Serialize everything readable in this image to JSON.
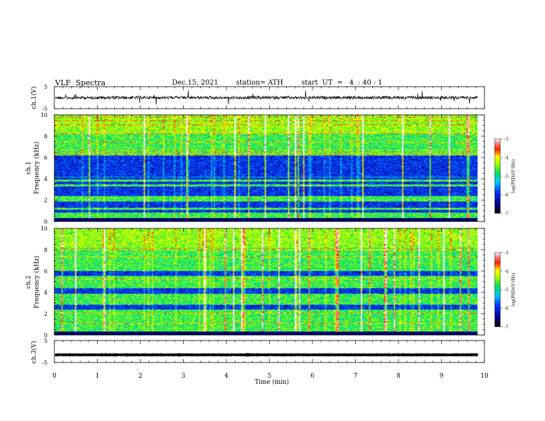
{
  "header": {
    "title": "VLF  Spectra",
    "date": "Dec.15, 2021",
    "station": "station= ATH",
    "start": "start  UT  =   4  : 40 : 1"
  },
  "chart_data": [
    {
      "id": "ch1-waveform",
      "type": "line",
      "ylabel": "ch.1(V)",
      "ylim": [
        -5,
        5
      ],
      "yticks": [
        5,
        -5
      ],
      "xlim": [
        0,
        10
      ],
      "baseline": 0,
      "color": "#000000"
    },
    {
      "id": "ch1-spectrogram",
      "type": "heatmap",
      "ylabel_line1": "ch.1",
      "ylabel_line2": "Frequency  (kHz)",
      "ylim": [
        0,
        10
      ],
      "yticks": [
        0,
        2,
        4,
        6,
        8,
        10
      ],
      "xlim": [
        0,
        9.8
      ],
      "colorbar": {
        "label": "log(PSD)(V²/Hz)",
        "range": [
          -7,
          -3
        ],
        "ticks": [
          "-3",
          "-4",
          "-5",
          "-6",
          "-7"
        ]
      },
      "dark_bands_khz": [
        [
          0.9,
          1.1
        ],
        [
          1.3,
          1.9
        ],
        [
          2.4,
          3.3
        ],
        [
          3.5,
          3.8
        ],
        [
          4.0,
          6.2
        ]
      ]
    },
    {
      "id": "ch2-spectrogram",
      "type": "heatmap",
      "ylabel_line1": "ch.2",
      "ylabel_line2": "Frequency  (kHz)",
      "ylim": [
        0,
        10
      ],
      "yticks": [
        0,
        2,
        4,
        6,
        8,
        10
      ],
      "xlim": [
        0,
        9.8
      ],
      "colorbar": {
        "label": "log(PSD)(V²/Hz)",
        "range": [
          -7,
          -3
        ],
        "ticks": [
          "-3",
          "-4",
          "-5",
          "-6",
          "-7"
        ]
      },
      "dark_bands_khz": [
        [
          2.4,
          2.9
        ],
        [
          3.9,
          4.4
        ],
        [
          5.6,
          6.0
        ]
      ]
    },
    {
      "id": "ch3-waveform",
      "type": "line",
      "ylabel": "ch.3(V)",
      "ylim": [
        -5,
        5
      ],
      "yticks": [
        5,
        -5
      ],
      "xlim": [
        0,
        10
      ],
      "baseline": -1.5,
      "color": "#000000"
    }
  ],
  "xaxis": {
    "label": "Time  (min)",
    "ticks": [
      "0",
      "1",
      "2",
      "3",
      "4",
      "5",
      "6",
      "7",
      "8",
      "9",
      "10"
    ],
    "range": [
      0,
      10
    ]
  }
}
